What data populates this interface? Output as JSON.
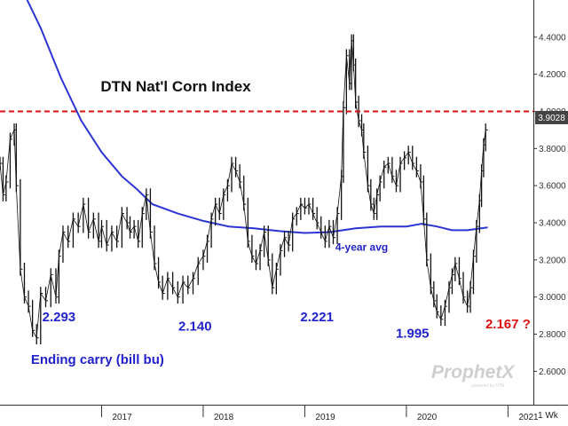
{
  "chart_data": {
    "type": "line",
    "title": "DTN Nat'l Corn Index",
    "frequency_label": "1 Wk",
    "last_value_label": "3.9028",
    "y_ticks": [
      2.6,
      2.8,
      3.0,
      3.2,
      3.4,
      3.6,
      3.8,
      4.0,
      4.2,
      4.4
    ],
    "y_tick_labels": [
      "2.6000",
      "2.8000",
      "3.0000",
      "3.2000",
      "3.4000",
      "3.6000",
      "3.8000",
      "4.0000",
      "4.2000",
      "4.4000"
    ],
    "ylim": [
      2.42,
      4.6
    ],
    "xlim": [
      2016.0,
      2021.25
    ],
    "x_ticks": [
      2017,
      2018,
      2019,
      2020,
      2021
    ],
    "x_tick_labels": [
      "2017",
      "2018",
      "2019",
      "2020",
      "2021"
    ],
    "reference_line": {
      "value": 4.0,
      "color": "#dd1111",
      "style": "dashed"
    },
    "series": [
      {
        "name": "DTN Nat'l Corn Index",
        "color": "#111111",
        "style": "weekly-bars",
        "points": [
          [
            2016.0,
            3.72
          ],
          [
            2016.03,
            3.55
          ],
          [
            2016.06,
            3.62
          ],
          [
            2016.1,
            3.85
          ],
          [
            2016.14,
            3.9
          ],
          [
            2016.16,
            3.6
          ],
          [
            2016.2,
            3.15
          ],
          [
            2016.24,
            3.0
          ],
          [
            2016.28,
            2.95
          ],
          [
            2016.32,
            2.82
          ],
          [
            2016.36,
            2.78
          ],
          [
            2016.4,
            3.02
          ],
          [
            2016.45,
            2.98
          ],
          [
            2016.5,
            3.12
          ],
          [
            2016.55,
            3.0
          ],
          [
            2016.58,
            3.22
          ],
          [
            2016.62,
            3.35
          ],
          [
            2016.67,
            3.3
          ],
          [
            2016.72,
            3.42
          ],
          [
            2016.77,
            3.38
          ],
          [
            2016.82,
            3.5
          ],
          [
            2016.87,
            3.35
          ],
          [
            2016.92,
            3.42
          ],
          [
            2016.97,
            3.3
          ],
          [
            2017.0,
            3.38
          ],
          [
            2017.05,
            3.28
          ],
          [
            2017.1,
            3.35
          ],
          [
            2017.15,
            3.3
          ],
          [
            2017.2,
            3.45
          ],
          [
            2017.25,
            3.4
          ],
          [
            2017.28,
            3.35
          ],
          [
            2017.32,
            3.38
          ],
          [
            2017.36,
            3.3
          ],
          [
            2017.4,
            3.45
          ],
          [
            2017.44,
            3.55
          ],
          [
            2017.48,
            3.35
          ],
          [
            2017.52,
            3.18
          ],
          [
            2017.56,
            3.08
          ],
          [
            2017.6,
            3.02
          ],
          [
            2017.65,
            3.1
          ],
          [
            2017.7,
            3.05
          ],
          [
            2017.75,
            3.0
          ],
          [
            2017.8,
            3.08
          ],
          [
            2017.85,
            3.05
          ],
          [
            2017.9,
            3.1
          ],
          [
            2017.95,
            3.18
          ],
          [
            2018.0,
            3.22
          ],
          [
            2018.04,
            3.3
          ],
          [
            2018.08,
            3.42
          ],
          [
            2018.12,
            3.5
          ],
          [
            2018.16,
            3.45
          ],
          [
            2018.2,
            3.55
          ],
          [
            2018.24,
            3.6
          ],
          [
            2018.28,
            3.72
          ],
          [
            2018.32,
            3.68
          ],
          [
            2018.36,
            3.62
          ],
          [
            2018.4,
            3.5
          ],
          [
            2018.44,
            3.3
          ],
          [
            2018.48,
            3.22
          ],
          [
            2018.52,
            3.18
          ],
          [
            2018.56,
            3.25
          ],
          [
            2018.6,
            3.35
          ],
          [
            2018.64,
            3.2
          ],
          [
            2018.68,
            3.05
          ],
          [
            2018.72,
            3.15
          ],
          [
            2018.76,
            3.25
          ],
          [
            2018.8,
            3.32
          ],
          [
            2018.84,
            3.28
          ],
          [
            2018.88,
            3.42
          ],
          [
            2018.92,
            3.45
          ],
          [
            2018.96,
            3.5
          ],
          [
            2019.0,
            3.48
          ],
          [
            2019.04,
            3.5
          ],
          [
            2019.08,
            3.45
          ],
          [
            2019.12,
            3.4
          ],
          [
            2019.16,
            3.35
          ],
          [
            2019.2,
            3.3
          ],
          [
            2019.24,
            3.38
          ],
          [
            2019.28,
            3.32
          ],
          [
            2019.32,
            3.45
          ],
          [
            2019.36,
            3.65
          ],
          [
            2019.38,
            4.02
          ],
          [
            2019.41,
            4.3
          ],
          [
            2019.44,
            4.15
          ],
          [
            2019.46,
            4.38
          ],
          [
            2019.48,
            4.25
          ],
          [
            2019.5,
            4.05
          ],
          [
            2019.53,
            3.95
          ],
          [
            2019.56,
            3.9
          ],
          [
            2019.58,
            3.78
          ],
          [
            2019.62,
            3.6
          ],
          [
            2019.65,
            3.5
          ],
          [
            2019.68,
            3.45
          ],
          [
            2019.71,
            3.55
          ],
          [
            2019.74,
            3.62
          ],
          [
            2019.78,
            3.7
          ],
          [
            2019.82,
            3.72
          ],
          [
            2019.86,
            3.65
          ],
          [
            2019.9,
            3.6
          ],
          [
            2019.94,
            3.72
          ],
          [
            2019.98,
            3.75
          ],
          [
            2020.02,
            3.78
          ],
          [
            2020.06,
            3.72
          ],
          [
            2020.1,
            3.68
          ],
          [
            2020.14,
            3.62
          ],
          [
            2020.17,
            3.42
          ],
          [
            2020.2,
            3.2
          ],
          [
            2020.24,
            3.05
          ],
          [
            2020.27,
            2.98
          ],
          [
            2020.3,
            2.92
          ],
          [
            2020.34,
            2.88
          ],
          [
            2020.38,
            2.95
          ],
          [
            2020.42,
            3.05
          ],
          [
            2020.45,
            3.12
          ],
          [
            2020.48,
            3.18
          ],
          [
            2020.52,
            3.1
          ],
          [
            2020.56,
            3.0
          ],
          [
            2020.6,
            2.95
          ],
          [
            2020.63,
            3.05
          ],
          [
            2020.66,
            3.22
          ],
          [
            2020.69,
            3.38
          ],
          [
            2020.72,
            3.52
          ],
          [
            2020.74,
            3.68
          ],
          [
            2020.76,
            3.82
          ],
          [
            2020.78,
            3.9
          ]
        ]
      },
      {
        "name": "4-year avg",
        "color": "#2a35d4",
        "style": "line",
        "points": [
          [
            2016.25,
            4.62
          ],
          [
            2016.4,
            4.45
          ],
          [
            2016.6,
            4.18
          ],
          [
            2016.8,
            3.95
          ],
          [
            2017.0,
            3.78
          ],
          [
            2017.2,
            3.65
          ],
          [
            2017.35,
            3.58
          ],
          [
            2017.5,
            3.5
          ],
          [
            2017.75,
            3.45
          ],
          [
            2018.0,
            3.41
          ],
          [
            2018.25,
            3.38
          ],
          [
            2018.5,
            3.37
          ],
          [
            2018.75,
            3.355
          ],
          [
            2019.0,
            3.345
          ],
          [
            2019.25,
            3.35
          ],
          [
            2019.5,
            3.37
          ],
          [
            2019.75,
            3.38
          ],
          [
            2020.0,
            3.38
          ],
          [
            2020.15,
            3.395
          ],
          [
            2020.3,
            3.38
          ],
          [
            2020.45,
            3.36
          ],
          [
            2020.6,
            3.36
          ],
          [
            2020.8,
            3.375
          ]
        ]
      }
    ],
    "annotations": [
      {
        "text": "2.293",
        "color": "#2222cc",
        "x": 2016.58,
        "y": 2.87
      },
      {
        "text": "2.140",
        "color": "#2222cc",
        "x": 2017.92,
        "y": 2.82
      },
      {
        "text": "2.221",
        "color": "#2222cc",
        "x": 2019.12,
        "y": 2.87
      },
      {
        "text": "1.995",
        "color": "#2222cc",
        "x": 2020.06,
        "y": 2.78
      },
      {
        "text": "2.167 ?",
        "color": "#dd1111",
        "x": 2021.0,
        "y": 2.83
      },
      {
        "text": "Ending carry (bill bu)",
        "color": "#2222cc",
        "x": 2016.96,
        "y": 2.64
      },
      {
        "text": "4-year avg",
        "color": "#2222cc",
        "x": 2019.56,
        "y": 3.25
      }
    ]
  },
  "watermark": {
    "text": "ProphetX",
    "subtext": "powered by DTN"
  },
  "colors": {
    "background": "#ffffff",
    "price": "#111111",
    "average": "#2a35d4",
    "reference": "#dd1111",
    "last_value_box": "#444444",
    "axis": "#333333"
  }
}
